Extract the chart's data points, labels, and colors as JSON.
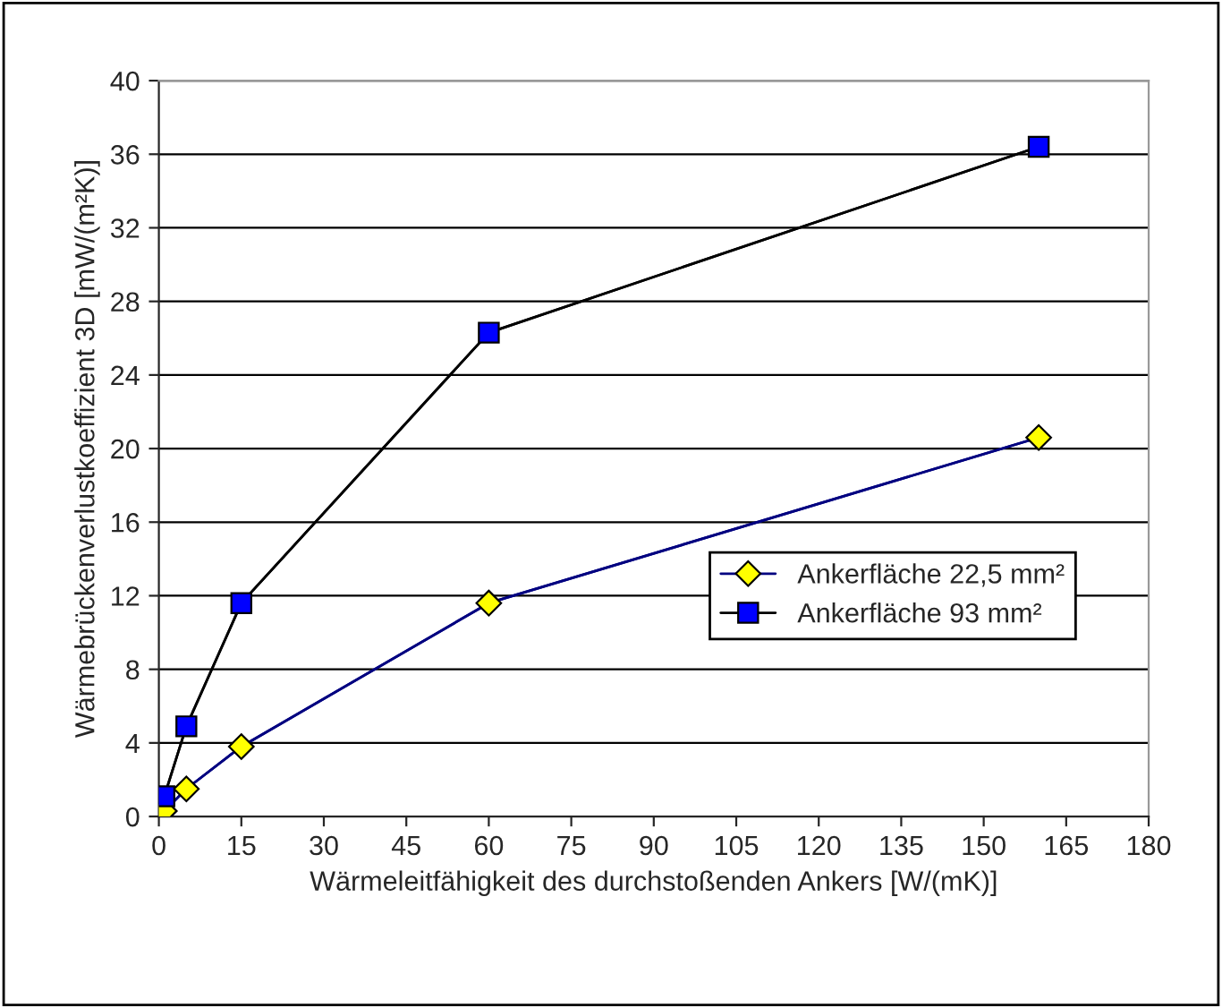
{
  "chart_data": {
    "type": "line",
    "xlabel": "Wärmeleitfähigkeit des durchstoßenden Ankers [W/(mK)]",
    "ylabel": "Wärmebrückenverlustkoeffizient 3D [mW/(m²K)]",
    "x": [
      1,
      5,
      15,
      60,
      160
    ],
    "series": [
      {
        "name": "Ankerfläche 22,5 mm²",
        "color": "#ffff00",
        "marker": "diamond",
        "values": [
          0.3,
          1.5,
          3.8,
          11.6,
          20.6
        ]
      },
      {
        "name": "Ankerfläche 93 mm²",
        "color": "#0000ff",
        "marker": "square",
        "values": [
          1.1,
          4.9,
          11.6,
          26.3,
          36.4
        ]
      }
    ],
    "xlim": [
      0,
      180
    ],
    "xticks": [
      0,
      15,
      30,
      45,
      60,
      75,
      90,
      105,
      120,
      135,
      150,
      165,
      180
    ],
    "ylim": [
      0,
      40
    ],
    "yticks": [
      0,
      4,
      8,
      12,
      16,
      20,
      24,
      28,
      32,
      36,
      40
    ],
    "grid": "y",
    "legend": "right",
    "line_style": "solid"
  }
}
